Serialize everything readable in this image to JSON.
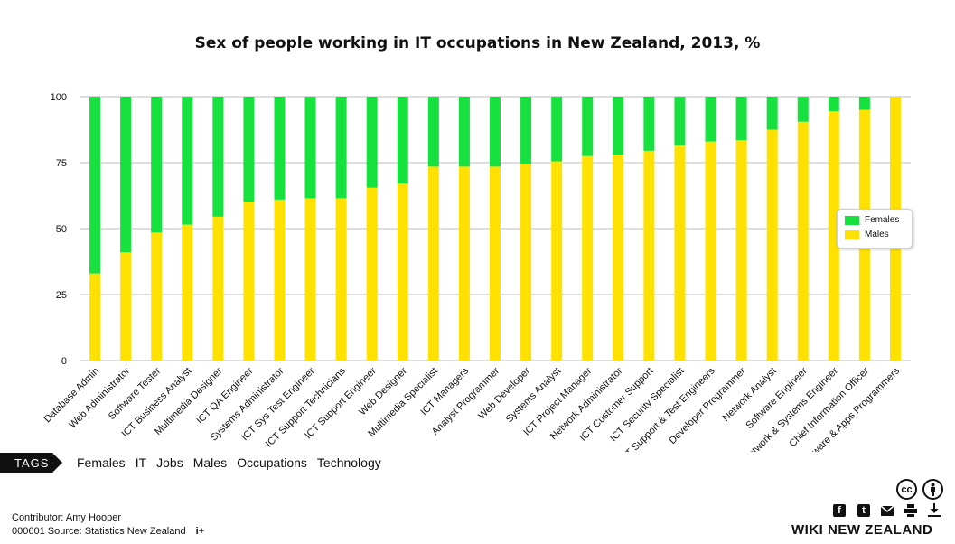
{
  "title": "Sex of people working in IT occupations in New Zealand, 2013, %",
  "chart_data": {
    "type": "bar",
    "stacked": true,
    "categories": [
      "Database Admin",
      "Web Administrator",
      "Software Tester",
      "ICT Business Analyst",
      "Multimedia Designer",
      "ICT QA Engineer",
      "Systems Administrator",
      "ICT Sys Test Engineer",
      "ICT Support Technicians",
      "ICT Support Engineer",
      "Web Designer",
      "Multimedia Specialist",
      "ICT Managers",
      "Analyst Programmer",
      "Web Developer",
      "Systems Analyst",
      "ICT Project Manager",
      "Network Administrator",
      "ICT Customer Support",
      "ICT Security Specialist",
      "ICT Support & Test Engineers",
      "Developer Programmer",
      "Network Analyst",
      "Software Engineer",
      "Network & Systems Engineer",
      "Chief Information Officer",
      "Software & Apps Programmers"
    ],
    "series": [
      {
        "name": "Males",
        "color": "#ffe100",
        "values": [
          33,
          41,
          48.5,
          51.5,
          54.5,
          60,
          61,
          61.5,
          61.5,
          65.5,
          67,
          73.5,
          73.5,
          73.5,
          74.5,
          75.5,
          77.5,
          78,
          79.5,
          81.5,
          83,
          83.5,
          87.5,
          90.5,
          94.5,
          95,
          100
        ]
      },
      {
        "name": "Females",
        "color": "#17e13e",
        "values": [
          67,
          59,
          51.5,
          48.5,
          45.5,
          40,
          39,
          38.5,
          38.5,
          34.5,
          33,
          26.5,
          26.5,
          26.5,
          25.5,
          24.5,
          22.5,
          22,
          20.5,
          18.5,
          17,
          16.5,
          12.5,
          9.5,
          5.5,
          5,
          0
        ]
      }
    ],
    "yticks": [
      0,
      25,
      50,
      75,
      100
    ],
    "ylim": [
      0,
      100
    ],
    "grid": true,
    "legend_position": "right"
  },
  "legend": {
    "items": [
      {
        "label": "Females",
        "color": "#17e13e"
      },
      {
        "label": "Males",
        "color": "#ffe100"
      }
    ]
  },
  "tags": {
    "label": "TAGS",
    "items": [
      "Females",
      "IT",
      "Jobs",
      "Males",
      "Occupations",
      "Technology"
    ]
  },
  "footer": {
    "contributor": "Contributor: Amy Hooper",
    "source": "000601 Source: Statistics New Zealand",
    "plus": "i+"
  },
  "brand": "WIKI NEW ZEALAND",
  "icons": [
    "cc-icon",
    "attribution-icon",
    "facebook-icon",
    "twitter-icon",
    "email-icon",
    "print-icon",
    "download-icon"
  ]
}
